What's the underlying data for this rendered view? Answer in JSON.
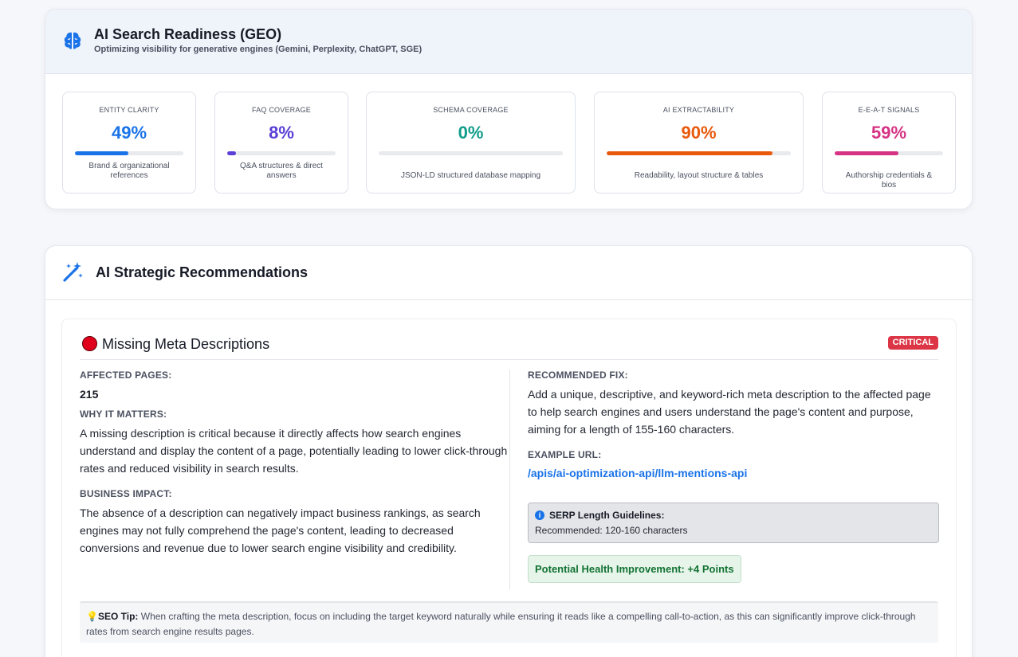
{
  "geo": {
    "title": "AI Search Readiness (GEO)",
    "subtitle": "Optimizing visibility for generative engines (Gemini, Perplexity, ChatGPT, SGE)",
    "icon": "brain-icon",
    "metrics": [
      {
        "label": "ENTITY CLARITY",
        "value": "49%",
        "percent": 49,
        "color": "#1a73e8",
        "desc": "Brand & organizational references"
      },
      {
        "label": "FAQ COVERAGE",
        "value": "8%",
        "percent": 8,
        "color": "#5b3fd6",
        "desc": "Q&A structures & direct answers"
      },
      {
        "label": "SCHEMA COVERAGE",
        "value": "0%",
        "percent": 0,
        "color": "#0f9d8a",
        "desc": "JSON-LD structured database mapping"
      },
      {
        "label": "AI EXTRACTABILITY",
        "value": "90%",
        "percent": 90,
        "color": "#e8590c",
        "desc": "Readability, layout structure & tables"
      },
      {
        "label": "E-E-A-T SIGNALS",
        "value": "59%",
        "percent": 59,
        "color": "#d63384",
        "desc": "Authorship credentials & bios"
      }
    ]
  },
  "recommendations": {
    "title": "AI Strategic Recommendations",
    "icon": "magic-wand-icon",
    "issue": {
      "title": "Missing Meta Descriptions",
      "severity": "CRITICAL",
      "affected_label": "AFFECTED PAGES:",
      "affected_value": "215",
      "why_label": "WHY IT MATTERS:",
      "why_text": "A missing description is critical because it directly affects how search engines understand and display the content of a page, potentially leading to lower click-through rates and reduced visibility in search results.",
      "impact_label": "BUSINESS IMPACT:",
      "impact_text": "The absence of a description can negatively impact business rankings, as search engines may not fully comprehend the page's content, leading to decreased conversions and revenue due to lower search engine visibility and credibility.",
      "fix_label": "RECOMMENDED FIX:",
      "fix_text": "Add a unique, descriptive, and keyword-rich meta description to the affected page to help search engines and users understand the page's content and purpose, aiming for a length of 155-160 characters.",
      "example_label": "EXAMPLE URL:",
      "example_url": "/apis/ai-optimization-api/llm-mentions-api",
      "serp_title": "SERP Length Guidelines:",
      "serp_text": "Recommended: 120-160 characters",
      "health": "Potential Health Improvement: +4 Points",
      "tip_label": "SEO Tip:",
      "tip_text": "When crafting the meta description, focus on including the target keyword naturally while ensuring it reads like a compelling call-to-action, as this can significantly improve click-through rates from search engine results pages."
    }
  }
}
